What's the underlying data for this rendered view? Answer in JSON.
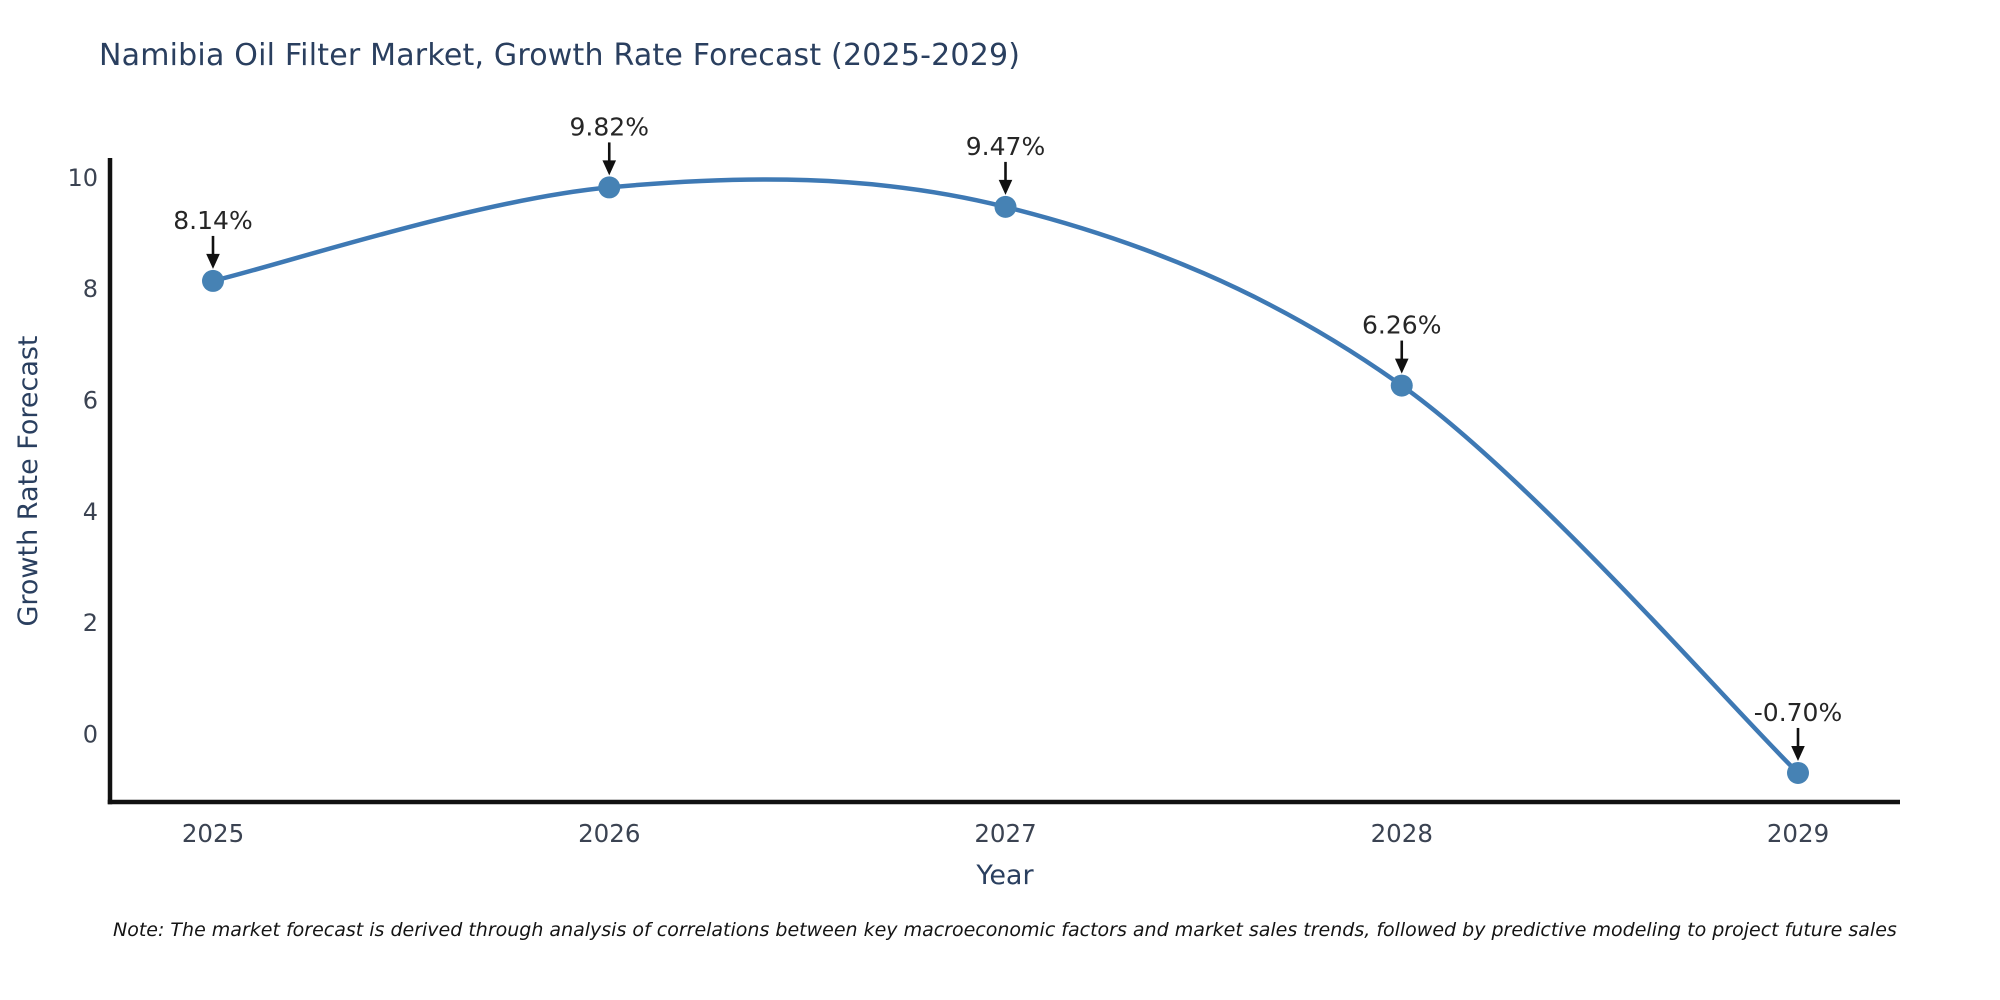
{
  "chart_data": {
    "type": "line",
    "line_shape": "spline",
    "title": "Namibia Oil Filter Market, Growth Rate Forecast (2025-2029)",
    "xlabel": "Year",
    "ylabel": "Growth Rate Forecast",
    "x": [
      2025,
      2026,
      2027,
      2028,
      2029
    ],
    "values": [
      8.14,
      9.82,
      9.47,
      6.26,
      -0.7
    ],
    "point_labels": [
      "8.14%",
      "9.82%",
      "9.47%",
      "6.26%",
      "-0.70%"
    ],
    "xticks": [
      "2025",
      "2026",
      "2027",
      "2028",
      "2029"
    ],
    "yticks": [
      0,
      2,
      4,
      6,
      8,
      10
    ],
    "ylim": [
      -1.25,
      10.55
    ],
    "grid": false,
    "legend": "none",
    "annotation_style": "value-label-with-down-arrow-to-point",
    "colors": {
      "line": "#3e79b4",
      "marker": "#4682b4",
      "axis_line": "#111111",
      "tick_label": "#3b4352",
      "title_text": "#2a3f5f",
      "axis_title_text": "#2a3f5f",
      "annotation_text": "#262626",
      "annotation_arrow": "#111111",
      "background": "#ffffff"
    }
  },
  "footer": {
    "note": "Note: The market forecast is derived through analysis of correlations between key macroeconomic factors and market sales trends, followed by predictive modeling to project future sales"
  }
}
